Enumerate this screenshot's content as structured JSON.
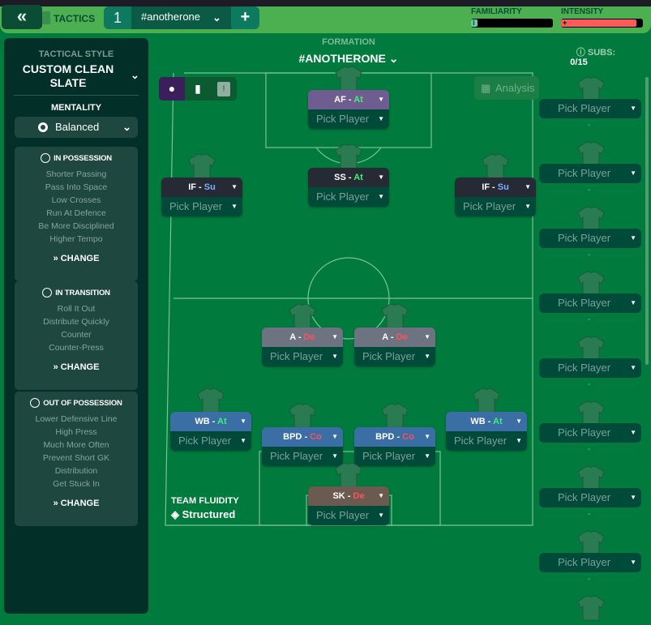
{
  "header": {
    "back_icon": "double-chevron-left",
    "title": "TACTICS",
    "tactic_number": "1",
    "tactic_name": "#anotherone",
    "add_label": "+",
    "familiarity": {
      "label": "FAMILIARITY",
      "value_pct": 8,
      "color": "#5fd0a8"
    },
    "intensity": {
      "label": "INTENSITY",
      "value_pct": 92,
      "color": "#ff5a5a"
    }
  },
  "left": {
    "style_label": "TACTICAL STYLE",
    "style_value": "CUSTOM CLEAN SLATE",
    "mentality_label": "MENTALITY",
    "mentality_value": "Balanced",
    "sections": [
      {
        "title": "IN POSSESSION",
        "items": [
          "Shorter Passing",
          "Pass Into Space",
          "Low Crosses",
          "Run At Defence",
          "Be More Disciplined",
          "Higher Tempo"
        ],
        "change": "CHANGE"
      },
      {
        "title": "IN TRANSITION",
        "items": [
          "Roll It Out",
          "Distribute Quickly",
          "Counter",
          "Counter-Press"
        ],
        "change": "CHANGE"
      },
      {
        "title": "OUT OF POSSESSION",
        "items": [
          "Lower Defensive Line",
          "High Press",
          "Much More Often",
          "Prevent Short GK",
          "Distribution",
          "Get Stuck In"
        ],
        "change": "CHANGE"
      }
    ]
  },
  "pitch": {
    "formation_label": "FORMATION",
    "formation_name": "#ANOTHERONE",
    "analysis_label": "Analysis",
    "fluidity_label": "TEAM FLUIDITY",
    "fluidity_value": "Structured",
    "pick_label": "Pick Player",
    "positions": [
      {
        "role": "AF",
        "duty": "At",
        "color": "#6f5d92"
      },
      {
        "role": "SS",
        "duty": "At",
        "color": "#252a35"
      },
      {
        "role": "IF",
        "duty": "Su",
        "color": "#252a35"
      },
      {
        "role": "IF",
        "duty": "Su",
        "color": "#252a35"
      },
      {
        "role": "A",
        "duty": "De",
        "color": "#6d7380"
      },
      {
        "role": "A",
        "duty": "De",
        "color": "#6d7380"
      },
      {
        "role": "WB",
        "duty": "At",
        "color": "#3a6ea5"
      },
      {
        "role": "WB",
        "duty": "At",
        "color": "#3a6ea5"
      },
      {
        "role": "BPD",
        "duty": "Co",
        "color": "#3a6ea5"
      },
      {
        "role": "BPD",
        "duty": "Co",
        "color": "#3a6ea5"
      },
      {
        "role": "SK",
        "duty": "De",
        "color": "#6b5a50"
      }
    ],
    "duty_colors": {
      "At": "#3df07a",
      "Su": "#7aaeff",
      "De": "#ff5060",
      "Co": "#ff5060"
    }
  },
  "subs": {
    "label": "SUBS:",
    "count": "0/15",
    "pick_label": "Pick Player",
    "placeholder": "-",
    "visible_slots": 8
  }
}
